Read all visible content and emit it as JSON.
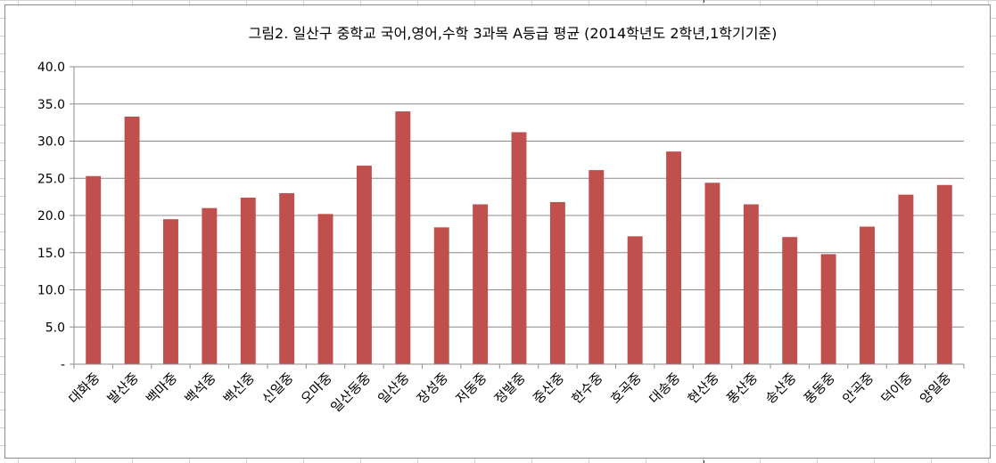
{
  "chart_data": {
    "type": "bar",
    "title": "그림2. 일산구 중학교 국어,영어,수학 3과목 A등급 평균  (2014학년도 2학년,1학기기준)",
    "xlabel": "",
    "ylabel": "",
    "ylim": [
      0,
      40
    ],
    "yticks": [
      "-",
      "5.0",
      "10.0",
      "15.0",
      "20.0",
      "25.0",
      "30.0",
      "35.0",
      "40.0"
    ],
    "grid": true,
    "bar_color": "#C0504D",
    "categories": [
      "대화중",
      "발산중",
      "백마중",
      "백석중",
      "백신중",
      "신일중",
      "오마중",
      "일산동중",
      "일산중",
      "장성중",
      "저동중",
      "정발중",
      "중산중",
      "한수중",
      "호곡중",
      "대송중",
      "현산중",
      "풍산중",
      "송산중",
      "풍동중",
      "안곡중",
      "덕이중",
      "양일중"
    ],
    "values": [
      25.3,
      33.3,
      19.5,
      21.0,
      22.4,
      23.0,
      20.2,
      26.7,
      34.0,
      18.4,
      21.5,
      31.2,
      21.8,
      26.1,
      17.2,
      28.6,
      24.4,
      21.5,
      17.1,
      14.8,
      18.5,
      22.8,
      24.1
    ]
  }
}
